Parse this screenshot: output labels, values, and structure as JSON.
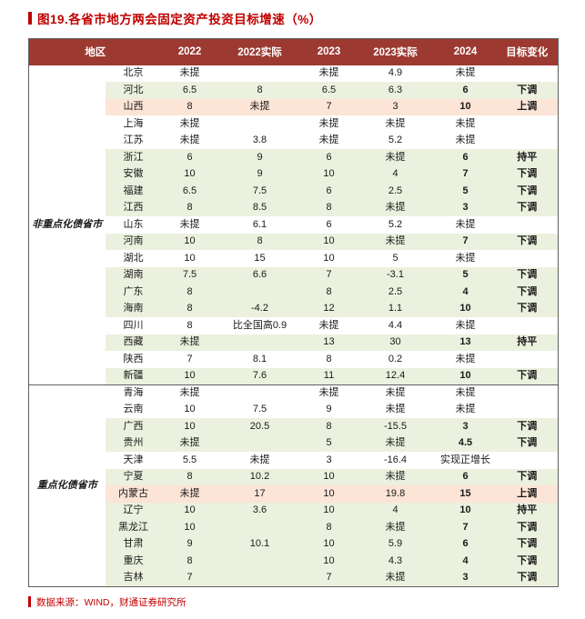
{
  "title": "图19.各省市地方两会固定资产投资目标增速（%）",
  "source": "数据来源：WIND，财通证券研究所",
  "colors": {
    "title_red": "#C00000",
    "header_bg": "#9C3A32",
    "header_text": "#FFFFFF",
    "row_highlight_green": "#EBF1DE",
    "row_highlight_orange": "#FCE4D6",
    "table_border": "#5F5F5F"
  },
  "table": {
    "headers": [
      {
        "label": "地区",
        "colspan": 2
      },
      {
        "label": "2022",
        "colspan": 1
      },
      {
        "label": "2022实际",
        "colspan": 1
      },
      {
        "label": "2023",
        "colspan": 1
      },
      {
        "label": "2023实际",
        "colspan": 1
      },
      {
        "label": "2024",
        "colspan": 1
      },
      {
        "label": "目标变化",
        "colspan": 1
      }
    ],
    "groups": [
      {
        "label": "非重点化债省市",
        "rows": [
          {
            "province": "北京",
            "y2022": "未提",
            "a2022": "",
            "y2023": "未提",
            "a2023": "4.9",
            "y2024": "未提",
            "change": "",
            "hl": "none"
          },
          {
            "province": "河北",
            "y2022": "6.5",
            "a2022": "8",
            "y2023": "6.5",
            "a2023": "6.3",
            "y2024": "6",
            "change": "下调",
            "hl": "green"
          },
          {
            "province": "山西",
            "y2022": "8",
            "a2022": "未提",
            "y2023": "7",
            "a2023": "3",
            "y2024": "10",
            "change": "上调",
            "hl": "orange"
          },
          {
            "province": "上海",
            "y2022": "未提",
            "a2022": "",
            "y2023": "未提",
            "a2023": "未提",
            "y2024": "未提",
            "change": "",
            "hl": "none"
          },
          {
            "province": "江苏",
            "y2022": "未提",
            "a2022": "3.8",
            "y2023": "未提",
            "a2023": "5.2",
            "y2024": "未提",
            "change": "",
            "hl": "none"
          },
          {
            "province": "浙江",
            "y2022": "6",
            "a2022": "9",
            "y2023": "6",
            "a2023": "未提",
            "y2024": "6",
            "change": "持平",
            "hl": "green"
          },
          {
            "province": "安徽",
            "y2022": "10",
            "a2022": "9",
            "y2023": "10",
            "a2023": "4",
            "y2024": "7",
            "change": "下调",
            "hl": "green"
          },
          {
            "province": "福建",
            "y2022": "6.5",
            "a2022": "7.5",
            "y2023": "6",
            "a2023": "2.5",
            "y2024": "5",
            "change": "下调",
            "hl": "green"
          },
          {
            "province": "江西",
            "y2022": "8",
            "a2022": "8.5",
            "y2023": "8",
            "a2023": "未提",
            "y2024": "3",
            "change": "下调",
            "hl": "green"
          },
          {
            "province": "山东",
            "y2022": "未提",
            "a2022": "6.1",
            "y2023": "6",
            "a2023": "5.2",
            "y2024": "未提",
            "change": "",
            "hl": "none"
          },
          {
            "province": "河南",
            "y2022": "10",
            "a2022": "8",
            "y2023": "10",
            "a2023": "未提",
            "y2024": "7",
            "change": "下调",
            "hl": "green"
          },
          {
            "province": "湖北",
            "y2022": "10",
            "a2022": "15",
            "y2023": "10",
            "a2023": "5",
            "y2024": "未提",
            "change": "",
            "hl": "none"
          },
          {
            "province": "湖南",
            "y2022": "7.5",
            "a2022": "6.6",
            "y2023": "7",
            "a2023": "-3.1",
            "y2024": "5",
            "change": "下调",
            "hl": "green"
          },
          {
            "province": "广东",
            "y2022": "8",
            "a2022": "",
            "y2023": "8",
            "a2023": "2.5",
            "y2024": "4",
            "change": "下调",
            "hl": "green"
          },
          {
            "province": "海南",
            "y2022": "8",
            "a2022": "-4.2",
            "y2023": "12",
            "a2023": "1.1",
            "y2024": "10",
            "change": "下调",
            "hl": "green"
          },
          {
            "province": "四川",
            "y2022": "8",
            "a2022": "比全国高0.9",
            "y2023": "未提",
            "a2023": "4.4",
            "y2024": "未提",
            "change": "",
            "hl": "none"
          },
          {
            "province": "西藏",
            "y2022": "未提",
            "a2022": "",
            "y2023": "13",
            "a2023": "30",
            "y2024": "13",
            "change": "持平",
            "hl": "green"
          },
          {
            "province": "陕西",
            "y2022": "7",
            "a2022": "8.1",
            "y2023": "8",
            "a2023": "0.2",
            "y2024": "未提",
            "change": "",
            "hl": "none"
          },
          {
            "province": "新疆",
            "y2022": "10",
            "a2022": "7.6",
            "y2023": "11",
            "a2023": "12.4",
            "y2024": "10",
            "change": "下调",
            "hl": "green"
          }
        ]
      },
      {
        "label": "重点化债省市",
        "rows": [
          {
            "province": "青海",
            "y2022": "未提",
            "a2022": "",
            "y2023": "未提",
            "a2023": "未提",
            "y2024": "未提",
            "change": "",
            "hl": "none"
          },
          {
            "province": "云南",
            "y2022": "10",
            "a2022": "7.5",
            "y2023": "9",
            "a2023": "未提",
            "y2024": "未提",
            "change": "",
            "hl": "none"
          },
          {
            "province": "广西",
            "y2022": "10",
            "a2022": "20.5",
            "y2023": "8",
            "a2023": "-15.5",
            "y2024": "3",
            "change": "下调",
            "hl": "green"
          },
          {
            "province": "贵州",
            "y2022": "未提",
            "a2022": "",
            "y2023": "5",
            "a2023": "未提",
            "y2024": "4.5",
            "change": "下调",
            "hl": "green"
          },
          {
            "province": "天津",
            "y2022": "5.5",
            "a2022": "未提",
            "y2023": "3",
            "a2023": "-16.4",
            "y2024": "实现正增长",
            "change": "",
            "hl": "none"
          },
          {
            "province": "宁夏",
            "y2022": "8",
            "a2022": "10.2",
            "y2023": "10",
            "a2023": "未提",
            "y2024": "6",
            "change": "下调",
            "hl": "green"
          },
          {
            "province": "内蒙古",
            "y2022": "未提",
            "a2022": "17",
            "y2023": "10",
            "a2023": "19.8",
            "y2024": "15",
            "change": "上调",
            "hl": "orange"
          },
          {
            "province": "辽宁",
            "y2022": "10",
            "a2022": "3.6",
            "y2023": "10",
            "a2023": "4",
            "y2024": "10",
            "change": "持平",
            "hl": "green"
          },
          {
            "province": "黑龙江",
            "y2022": "10",
            "a2022": "",
            "y2023": "8",
            "a2023": "未提",
            "y2024": "7",
            "change": "下调",
            "hl": "green"
          },
          {
            "province": "甘肃",
            "y2022": "9",
            "a2022": "10.1",
            "y2023": "10",
            "a2023": "5.9",
            "y2024": "6",
            "change": "下调",
            "hl": "green"
          },
          {
            "province": "重庆",
            "y2022": "8",
            "a2022": "",
            "y2023": "10",
            "a2023": "4.3",
            "y2024": "4",
            "change": "下调",
            "hl": "green"
          },
          {
            "province": "吉林",
            "y2022": "7",
            "a2022": "",
            "y2023": "7",
            "a2023": "未提",
            "y2024": "3",
            "change": "下调",
            "hl": "green"
          }
        ]
      }
    ]
  }
}
